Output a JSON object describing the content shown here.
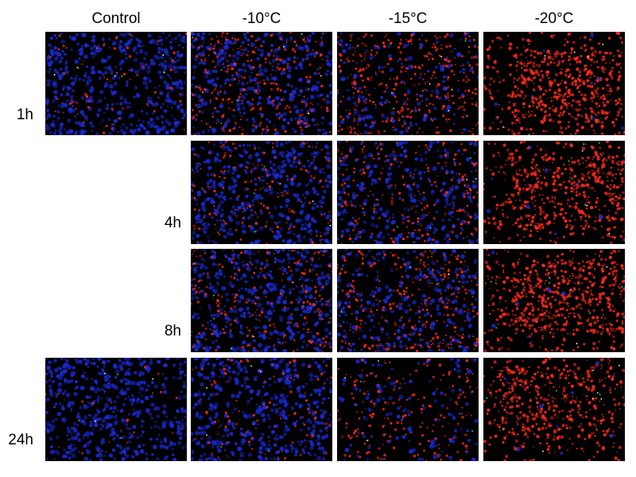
{
  "columns": [
    {
      "id": "control",
      "label": "Control"
    },
    {
      "id": "m10",
      "label": "-10°C"
    },
    {
      "id": "m15",
      "label": "-15°C"
    },
    {
      "id": "m20",
      "label": "-20°C"
    }
  ],
  "rows": [
    {
      "id": "1h",
      "label": "1h"
    },
    {
      "id": "4h",
      "label": "4h"
    },
    {
      "id": "8h",
      "label": "8h"
    },
    {
      "id": "24h",
      "label": "24h"
    }
  ],
  "colors": {
    "nucleus_blue": "#1a2bd6",
    "dead_red": "#ff2a1a",
    "marker_green": "#33ff66",
    "background": "#000000"
  },
  "panels": [
    {
      "row": "1h",
      "col": "control",
      "blue": 0.95,
      "red": 0.1
    },
    {
      "row": "1h",
      "col": "m10",
      "blue": 0.7,
      "red": 0.45
    },
    {
      "row": "1h",
      "col": "m15",
      "blue": 0.3,
      "red": 0.55
    },
    {
      "row": "1h",
      "col": "m20",
      "blue": 0.02,
      "red": 0.95
    },
    {
      "row": "4h",
      "col": "m10",
      "blue": 0.85,
      "red": 0.25
    },
    {
      "row": "4h",
      "col": "m15",
      "blue": 0.6,
      "red": 0.35
    },
    {
      "row": "4h",
      "col": "m20",
      "blue": 0.02,
      "red": 0.9
    },
    {
      "row": "8h",
      "col": "m10",
      "blue": 0.85,
      "red": 0.35
    },
    {
      "row": "8h",
      "col": "m15",
      "blue": 0.55,
      "red": 0.45
    },
    {
      "row": "8h",
      "col": "m20",
      "blue": 0.02,
      "red": 1.0
    },
    {
      "row": "24h",
      "col": "control",
      "blue": 1.0,
      "red": 0.03
    },
    {
      "row": "24h",
      "col": "m10",
      "blue": 0.9,
      "red": 0.15
    },
    {
      "row": "24h",
      "col": "m15",
      "blue": 0.25,
      "red": 0.3
    },
    {
      "row": "24h",
      "col": "m20",
      "blue": 0.02,
      "red": 0.75
    }
  ]
}
